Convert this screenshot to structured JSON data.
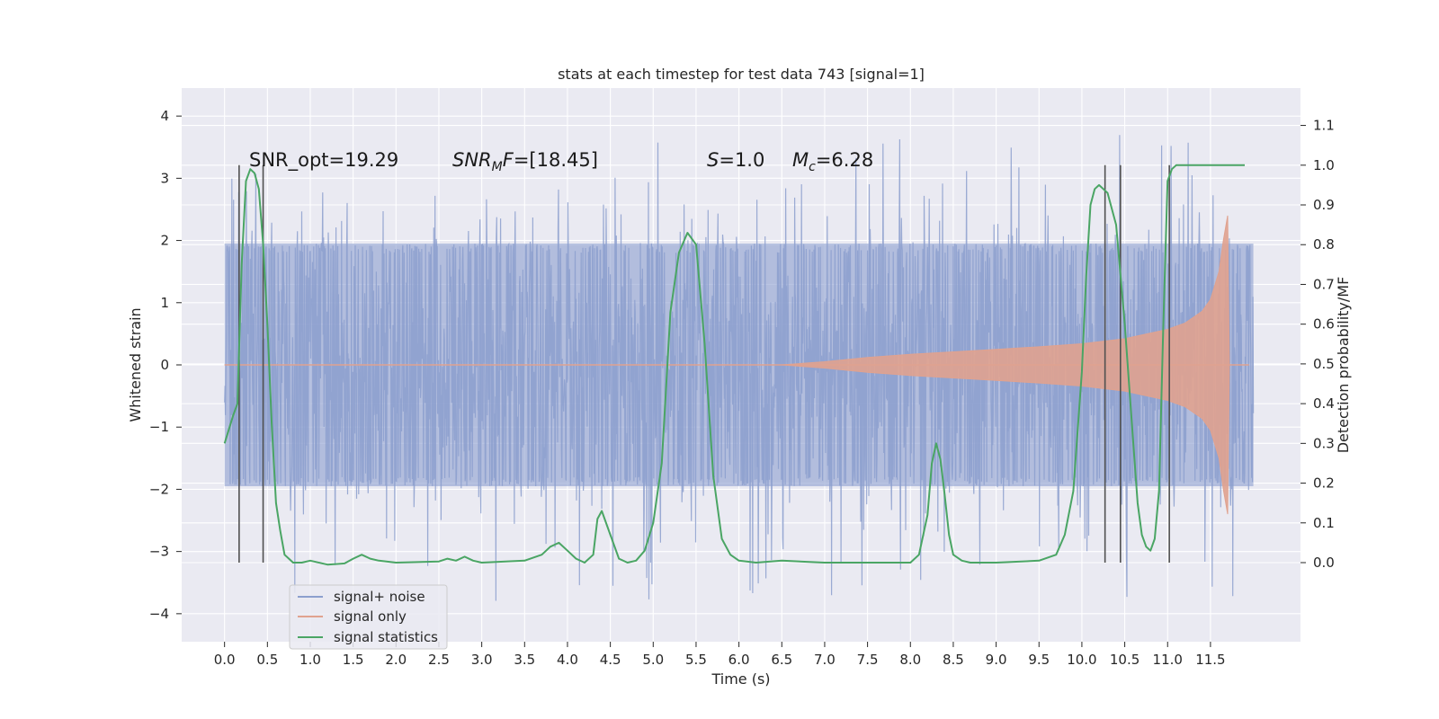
{
  "chart_data": {
    "type": "line",
    "title": "stats at each timestep for test data 743 [signal=1]",
    "xlabel": "Time (s)",
    "ylabel_left": "Whitened strain",
    "ylabel_right": "Detection probability/MF",
    "xlim": [
      -0.5,
      12.55
    ],
    "ylim_left": [
      -4.45,
      4.45
    ],
    "ylim_right": [
      -0.199,
      1.194
    ],
    "x_ticks": [
      "0.0",
      "0.5",
      "1.0",
      "1.5",
      "2.0",
      "2.5",
      "3.0",
      "3.5",
      "4.0",
      "4.5",
      "5.0",
      "5.5",
      "6.0",
      "6.5",
      "7.0",
      "7.5",
      "8.0",
      "8.5",
      "9.0",
      "9.5",
      "10.0",
      "10.5",
      "11.0",
      "11.5"
    ],
    "y_ticks_left": [
      "4",
      "3",
      "2",
      "1",
      "0",
      "−1",
      "−2",
      "−3",
      "−4"
    ],
    "y_ticks_right": [
      "1.1",
      "1.0",
      "0.9",
      "0.8",
      "0.7",
      "0.6",
      "0.5",
      "0.4",
      "0.3",
      "0.2",
      "0.1",
      "0.0"
    ],
    "grid": true,
    "legend_position": "lower-left",
    "annotations": {
      "snr_opt": "SNR_opt=19.29",
      "snr_mf_symbol": "SNR",
      "snr_mf_sub": "M",
      "snr_mf_suffix": "F",
      "snr_mf_value": "=[18.45]",
      "s_symbol": "S",
      "s_value": "=1.0",
      "mc_symbol": "M",
      "mc_sub": "c",
      "mc_value": "=6.28"
    },
    "series": [
      {
        "name": "signal+ noise",
        "color": "#8c9fce",
        "x_range": [
          0.0,
          12.0
        ],
        "envelope_core": [
          -1.95,
          1.95
        ],
        "spike_extremes": [
          -4.0,
          4.1
        ]
      },
      {
        "name": "signal only",
        "color": "#e0a28f",
        "envelope": {
          "x": [
            6.5,
            7.0,
            7.5,
            8.0,
            8.5,
            9.0,
            9.5,
            10.0,
            10.5,
            11.0,
            11.2,
            11.4,
            11.5,
            11.6,
            11.65,
            11.7,
            11.72
          ],
          "amplitude": [
            0.0,
            0.05,
            0.12,
            0.17,
            0.21,
            0.25,
            0.29,
            0.34,
            0.42,
            0.57,
            0.67,
            0.86,
            1.05,
            1.5,
            2.0,
            2.4,
            0.0
          ]
        }
      },
      {
        "name": "signal statistics",
        "color": "#4aa564",
        "axis": "right",
        "x": [
          0.0,
          0.1,
          0.15,
          0.2,
          0.25,
          0.3,
          0.35,
          0.4,
          0.45,
          0.5,
          0.55,
          0.6,
          0.65,
          0.7,
          0.75,
          0.8,
          0.9,
          1.0,
          1.2,
          1.4,
          1.5,
          1.6,
          1.7,
          1.8,
          2.0,
          2.5,
          2.6,
          2.7,
          2.8,
          2.9,
          3.0,
          3.5,
          3.7,
          3.8,
          3.9,
          4.0,
          4.1,
          4.2,
          4.3,
          4.35,
          4.4,
          4.5,
          4.6,
          4.7,
          4.8,
          4.9,
          5.0,
          5.1,
          5.2,
          5.3,
          5.4,
          5.5,
          5.6,
          5.7,
          5.8,
          5.9,
          6.0,
          6.2,
          6.5,
          7.0,
          8.0,
          8.1,
          8.2,
          8.25,
          8.3,
          8.35,
          8.4,
          8.45,
          8.5,
          8.6,
          8.7,
          9.0,
          9.5,
          9.7,
          9.8,
          9.9,
          10.0,
          10.05,
          10.1,
          10.15,
          10.2,
          10.3,
          10.4,
          10.5,
          10.6,
          10.65,
          10.7,
          10.75,
          10.8,
          10.85,
          10.9,
          10.95,
          11.0,
          11.05,
          11.1,
          11.2,
          11.3,
          11.5,
          11.9
        ],
        "y": [
          0.3,
          0.37,
          0.4,
          0.75,
          0.96,
          0.99,
          0.98,
          0.94,
          0.8,
          0.6,
          0.35,
          0.15,
          0.08,
          0.02,
          0.01,
          0.0,
          0.0,
          0.005,
          -0.005,
          -0.002,
          0.01,
          0.02,
          0.01,
          0.005,
          0.0,
          0.003,
          0.01,
          0.005,
          0.015,
          0.005,
          0.0,
          0.005,
          0.02,
          0.04,
          0.05,
          0.03,
          0.01,
          0.0,
          0.02,
          0.11,
          0.13,
          0.07,
          0.01,
          0.0,
          0.005,
          0.03,
          0.1,
          0.25,
          0.63,
          0.78,
          0.83,
          0.8,
          0.55,
          0.22,
          0.06,
          0.02,
          0.005,
          0.0,
          0.005,
          0.0,
          0.0,
          0.02,
          0.12,
          0.25,
          0.3,
          0.26,
          0.17,
          0.07,
          0.02,
          0.005,
          0.0,
          0.0,
          0.005,
          0.02,
          0.07,
          0.18,
          0.48,
          0.72,
          0.9,
          0.94,
          0.95,
          0.93,
          0.85,
          0.6,
          0.3,
          0.15,
          0.07,
          0.04,
          0.03,
          0.06,
          0.18,
          0.6,
          0.96,
          0.99,
          1.0,
          1.0,
          1.0,
          1.0,
          1.0
        ]
      }
    ],
    "vertical_markers": [
      0.17,
      0.45,
      10.27,
      10.45,
      11.02
    ]
  }
}
